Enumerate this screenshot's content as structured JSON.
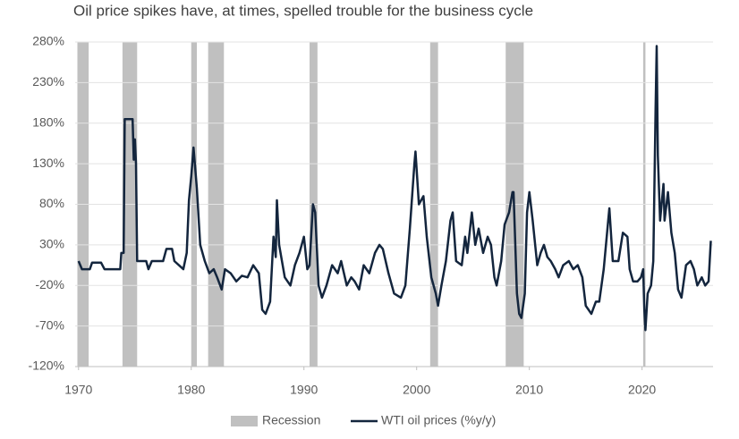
{
  "chart_data": {
    "type": "line",
    "title": "Oil price spikes have, at times, spelled trouble for the business cycle",
    "xlim": [
      1969.7,
      2026.3
    ],
    "xticks": [
      1970,
      1980,
      1990,
      2000,
      2010,
      2020
    ],
    "ylim": [
      -120,
      280
    ],
    "yticks": [
      {
        "value": -120,
        "label": "-120%"
      },
      {
        "value": -70,
        "label": "-70%"
      },
      {
        "value": -20,
        "label": "-20%"
      },
      {
        "value": 30,
        "label": "30%"
      },
      {
        "value": 80,
        "label": "80%"
      },
      {
        "value": 130,
        "label": "130%"
      },
      {
        "value": 180,
        "label": "180%"
      },
      {
        "value": 230,
        "label": "230%"
      },
      {
        "value": 280,
        "label": "280%"
      }
    ],
    "grid": true,
    "recession": {
      "name": "Recession",
      "color": "#c0c0c0",
      "periods": [
        [
          1969.9,
          1970.9
        ],
        [
          1973.9,
          1975.2
        ],
        [
          1980.0,
          1980.5
        ],
        [
          1981.5,
          1982.9
        ],
        [
          1990.5,
          1991.2
        ],
        [
          2001.2,
          2001.9
        ],
        [
          2007.9,
          2009.5
        ],
        [
          2020.1,
          2020.3
        ]
      ]
    },
    "series": [
      {
        "name": "WTI oil prices (%y/y)",
        "color": "#13253d",
        "x": [
          1970.0,
          1970.3,
          1971.0,
          1971.2,
          1972.0,
          1972.3,
          1973.7,
          1973.8,
          1974.0,
          1974.1,
          1974.8,
          1974.9,
          1975.0,
          1975.1,
          1975.2,
          1976.0,
          1976.2,
          1976.5,
          1977.5,
          1977.8,
          1978.3,
          1978.5,
          1979.3,
          1979.6,
          1979.8,
          1980.0,
          1980.2,
          1980.5,
          1980.8,
          1981.2,
          1981.6,
          1982.0,
          1982.3,
          1982.7,
          1983.0,
          1983.5,
          1984.0,
          1984.5,
          1985.0,
          1985.5,
          1986.0,
          1986.3,
          1986.6,
          1987.0,
          1987.3,
          1987.5,
          1987.6,
          1987.8,
          1988.3,
          1988.8,
          1989.2,
          1989.6,
          1990.0,
          1990.3,
          1990.5,
          1990.8,
          1991.0,
          1991.3,
          1991.6,
          1992.0,
          1992.5,
          1993.0,
          1993.3,
          1993.8,
          1994.2,
          1994.5,
          1994.9,
          1995.3,
          1995.8,
          1996.3,
          1996.7,
          1997.0,
          1997.5,
          1998.0,
          1998.6,
          1999.0,
          1999.4,
          1999.8,
          1999.9,
          2000.2,
          2000.6,
          2000.9,
          2001.3,
          2001.7,
          2001.9,
          2002.2,
          2002.6,
          2003.0,
          2003.2,
          2003.5,
          2004.0,
          2004.3,
          2004.5,
          2004.9,
          2005.2,
          2005.5,
          2005.9,
          2006.3,
          2006.6,
          2006.9,
          2007.1,
          2007.5,
          2007.8,
          2008.2,
          2008.5,
          2008.6,
          2008.9,
          2009.1,
          2009.3,
          2009.6,
          2009.8,
          2010.0,
          2010.3,
          2010.7,
          2011.0,
          2011.3,
          2011.6,
          2011.9,
          2012.3,
          2012.6,
          2013.0,
          2013.5,
          2013.9,
          2014.3,
          2014.7,
          2015.0,
          2015.5,
          2015.9,
          2016.2,
          2016.6,
          2017.0,
          2017.1,
          2017.4,
          2017.9,
          2018.3,
          2018.7,
          2018.9,
          2019.2,
          2019.6,
          2019.9,
          2020.1,
          2020.2,
          2020.3,
          2020.5,
          2020.8,
          2021.0,
          2021.2,
          2021.3,
          2021.4,
          2021.6,
          2021.9,
          2022.0,
          2022.3,
          2022.6,
          2022.9,
          2023.2,
          2023.5,
          2023.9,
          2024.3,
          2024.6,
          2024.9,
          2025.3,
          2025.6,
          2025.9,
          2026.1
        ],
        "values": [
          10,
          0,
          0,
          8,
          8,
          0,
          0,
          20,
          20,
          185,
          185,
          135,
          160,
          130,
          10,
          10,
          0,
          10,
          10,
          25,
          25,
          10,
          0,
          20,
          85,
          115,
          150,
          100,
          30,
          10,
          -5,
          0,
          -10,
          -25,
          0,
          -5,
          -15,
          -8,
          -10,
          5,
          -5,
          -50,
          -55,
          -40,
          40,
          15,
          85,
          30,
          -10,
          -20,
          5,
          20,
          40,
          0,
          5,
          80,
          70,
          -20,
          -35,
          -20,
          5,
          -5,
          10,
          -20,
          -10,
          -15,
          -25,
          5,
          -5,
          20,
          30,
          25,
          -5,
          -30,
          -35,
          -20,
          50,
          130,
          145,
          80,
          90,
          40,
          -10,
          -30,
          -45,
          -20,
          10,
          60,
          70,
          10,
          5,
          40,
          20,
          70,
          30,
          50,
          20,
          40,
          30,
          -10,
          -20,
          10,
          55,
          70,
          95,
          95,
          -30,
          -55,
          -60,
          -30,
          70,
          95,
          60,
          5,
          20,
          30,
          15,
          10,
          0,
          -10,
          5,
          10,
          0,
          5,
          -10,
          -45,
          -55,
          -40,
          -40,
          0,
          60,
          75,
          10,
          10,
          45,
          40,
          0,
          -15,
          -15,
          -10,
          0,
          -50,
          -75,
          -30,
          -20,
          10,
          200,
          275,
          140,
          60,
          105,
          60,
          95,
          45,
          20,
          -25,
          -35,
          5,
          10,
          0,
          -20,
          -10,
          -20,
          -15,
          35
        ]
      }
    ]
  }
}
